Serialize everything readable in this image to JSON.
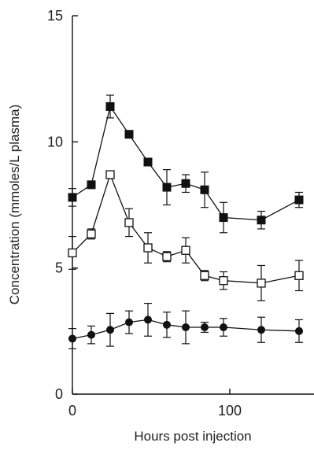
{
  "chart_data": {
    "type": "line",
    "title": "",
    "xlabel": "Hours post injection",
    "ylabel": "Concentration (mmoles/L plasma)",
    "xlim": [
      0,
      150
    ],
    "ylim": [
      0,
      15
    ],
    "xticks": [
      0,
      100
    ],
    "yticks": [
      0,
      5,
      10,
      15
    ],
    "grid": false,
    "legend": "none",
    "x": [
      0,
      12,
      24,
      36,
      48,
      60,
      72,
      84,
      96,
      120,
      144
    ],
    "series": [
      {
        "marker": "filled-square",
        "color": "#111111",
        "values": [
          7.8,
          8.3,
          11.4,
          10.3,
          9.2,
          8.2,
          8.35,
          8.1,
          7.0,
          6.9,
          7.7
        ],
        "errors": [
          0.35,
          0.0,
          0.45,
          0.0,
          0.0,
          0.7,
          0.35,
          0.7,
          0.6,
          0.35,
          0.3
        ]
      },
      {
        "marker": "open-square",
        "color": "#111111",
        "values": [
          5.6,
          6.35,
          8.7,
          6.8,
          5.8,
          5.45,
          5.7,
          4.7,
          4.5,
          4.4,
          4.7
        ],
        "errors": [
          0.65,
          0.2,
          0.0,
          0.55,
          0.6,
          0.2,
          0.5,
          0.2,
          0.35,
          0.7,
          0.6
        ]
      },
      {
        "marker": "filled-circle",
        "color": "#111111",
        "values": [
          2.2,
          2.35,
          2.55,
          2.85,
          2.95,
          2.75,
          2.65,
          2.65,
          2.65,
          2.55,
          2.5
        ],
        "errors": [
          0.4,
          0.35,
          0.65,
          0.45,
          0.65,
          0.5,
          0.65,
          0.2,
          0.35,
          0.5,
          0.45
        ]
      }
    ]
  }
}
